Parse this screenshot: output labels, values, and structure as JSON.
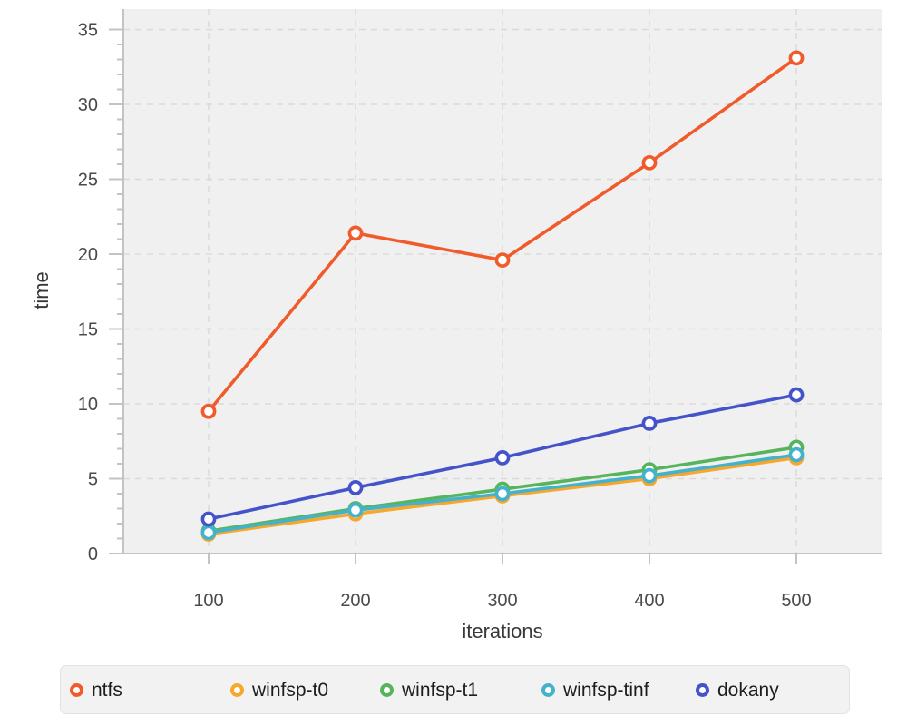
{
  "chart_data": {
    "type": "line",
    "title": "",
    "xlabel": "iterations",
    "ylabel": "time",
    "x": [
      100,
      200,
      300,
      400,
      500
    ],
    "series": [
      {
        "name": "ntfs",
        "color": "#f05b2c",
        "values": [
          9.5,
          21.4,
          19.6,
          26.1,
          33.1
        ]
      },
      {
        "name": "winfsp-t0",
        "color": "#f7a729",
        "values": [
          1.3,
          2.65,
          3.85,
          5.0,
          6.4
        ]
      },
      {
        "name": "winfsp-t1",
        "color": "#56b55c",
        "values": [
          1.5,
          3.0,
          4.3,
          5.6,
          7.1
        ]
      },
      {
        "name": "winfsp-tinf",
        "color": "#45b2cd",
        "values": [
          1.4,
          2.9,
          4.0,
          5.2,
          6.6
        ]
      },
      {
        "name": "dokany",
        "color": "#4453c9",
        "values": [
          2.3,
          4.4,
          6.4,
          8.7,
          10.6
        ]
      }
    ],
    "xticks": [
      100,
      200,
      300,
      400,
      500
    ],
    "yticks": [
      0,
      5,
      10,
      15,
      20,
      25,
      30,
      35
    ],
    "xlim": [
      41,
      558
    ],
    "ylim": [
      0,
      36.4
    ],
    "grid": true,
    "marker": "open-circle",
    "legend_position": "bottom",
    "plot_bg_color": "#f0f0f0",
    "gridline_color": "#dadada",
    "axis_color": "#c3c3c3"
  }
}
